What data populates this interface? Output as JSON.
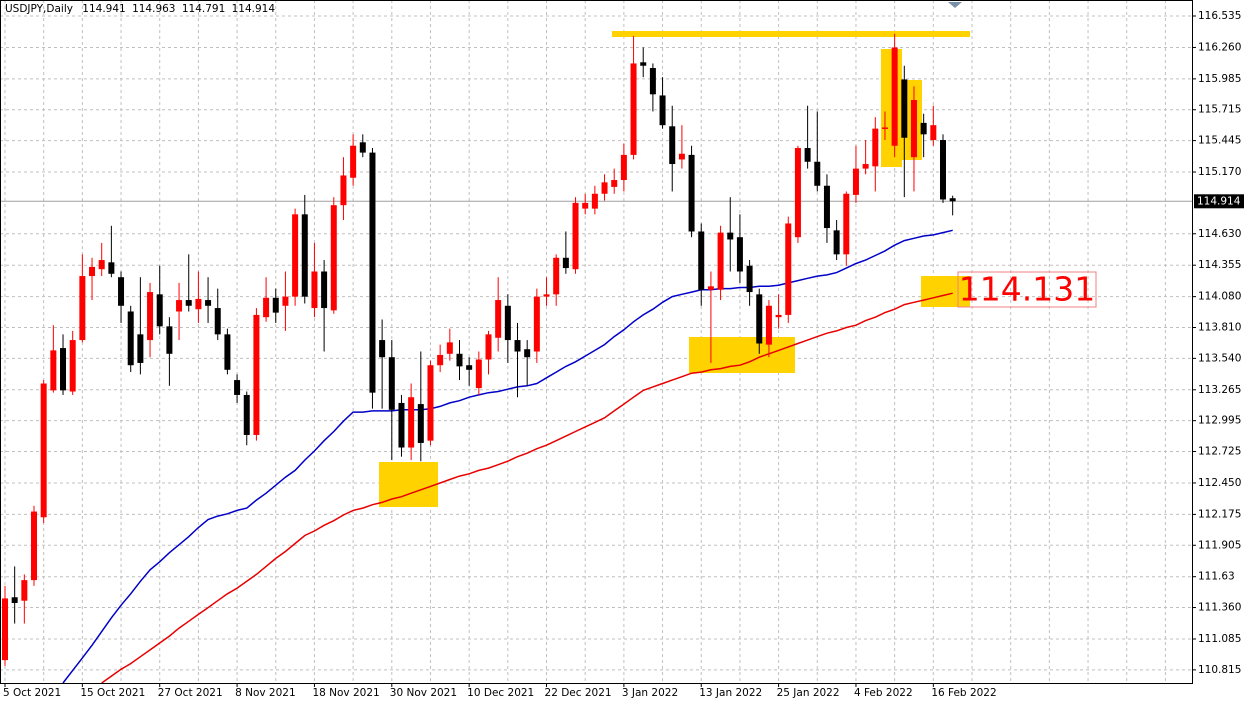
{
  "chart_data": {
    "type": "candlestick",
    "title": "USDJPY,Daily",
    "annotation": "114.131",
    "up_color": "#ff0000",
    "down_color": "#000000",
    "grid": true,
    "categories": [
      "5 Oct 2021",
      null,
      null,
      null,
      null,
      null,
      null,
      null,
      "15 Oct 2021",
      null,
      null,
      null,
      null,
      null,
      null,
      null,
      "27 Oct 2021",
      null,
      null,
      null,
      null,
      null,
      null,
      null,
      "8 Nov 2021",
      null,
      null,
      null,
      null,
      null,
      null,
      null,
      "18 Nov 2021",
      null,
      null,
      null,
      null,
      null,
      null,
      null,
      "30 Nov 2021",
      null,
      null,
      null,
      null,
      null,
      null,
      null,
      "10 Dec 2021",
      null,
      null,
      null,
      null,
      null,
      null,
      null,
      "22 Dec 2021",
      null,
      null,
      null,
      null,
      null,
      null,
      null,
      "3 Jan 2022",
      null,
      null,
      null,
      null,
      null,
      null,
      null,
      "13 Jan 2022",
      null,
      null,
      null,
      null,
      null,
      null,
      null,
      "25 Jan 2022",
      null,
      null,
      null,
      null,
      null,
      null,
      null,
      "4 Feb 2022",
      null,
      null,
      null,
      null,
      null,
      null,
      null,
      "16 Feb 2022",
      null,
      null
    ],
    "open": [
      110.9,
      111.45,
      111.42,
      111.6,
      112.15,
      113.26,
      113.63,
      113.25,
      113.7,
      114.26,
      114.32,
      114.38,
      114.25,
      113.95,
      113.75,
      113.7,
      114.1,
      113.82,
      113.95,
      114.05,
      113.97,
      114.05,
      113.98,
      113.75,
      113.35,
      113.22,
      112.87,
      113.9,
      114.07,
      114.0,
      114.08,
      114.8,
      113.98,
      114.3,
      113.96,
      114.88,
      115.12,
      115.43,
      115.34,
      113.7,
      113.55,
      113.15,
      112.76,
      113.14,
      112.82,
      113.48,
      113.58,
      113.58,
      113.48,
      113.28,
      113.53,
      113.72,
      114.0,
      113.7,
      113.62,
      113.6,
      114.08,
      114.1,
      114.42,
      114.32,
      114.85,
      114.85,
      114.98,
      115.04,
      115.1,
      115.32,
      116.13,
      116.08,
      115.84,
      115.57,
      115.28,
      115.32,
      114.65,
      114.14,
      114.14,
      114.64,
      114.6,
      114.35,
      114.1,
      113.66,
      113.9,
      113.92,
      114.6,
      115.38,
      115.26,
      115.05,
      114.66,
      114.45,
      114.97,
      115.2,
      115.22,
      115.55,
      115.4,
      115.98,
      115.3,
      115.6,
      115.45,
      115.45,
      114.941
    ],
    "high": [
      111.55,
      111.72,
      111.65,
      112.25,
      113.35,
      113.83,
      113.75,
      113.78,
      114.45,
      114.42,
      114.55,
      114.7,
      114.3,
      114.0,
      114.25,
      114.2,
      114.35,
      113.9,
      114.2,
      114.45,
      114.3,
      114.25,
      114.15,
      113.8,
      113.4,
      113.25,
      113.98,
      114.25,
      114.15,
      114.3,
      114.85,
      114.97,
      114.55,
      114.4,
      114.95,
      115.3,
      115.5,
      115.5,
      115.38,
      113.88,
      113.7,
      113.22,
      113.32,
      113.6,
      113.52,
      113.66,
      113.8,
      113.7,
      113.55,
      113.6,
      113.78,
      114.25,
      114.1,
      113.85,
      113.7,
      114.15,
      114.25,
      114.45,
      114.65,
      114.95,
      114.98,
      115.05,
      115.15,
      115.2,
      115.42,
      116.36,
      116.26,
      116.12,
      116.0,
      115.75,
      115.58,
      115.4,
      114.72,
      114.3,
      114.7,
      114.95,
      114.8,
      114.4,
      114.15,
      114.05,
      114.1,
      114.78,
      115.4,
      115.75,
      115.7,
      115.15,
      114.75,
      115.0,
      115.4,
      115.45,
      115.65,
      115.7,
      116.38,
      116.1,
      115.92,
      115.68,
      115.75,
      115.5,
      114.963
    ],
    "low": [
      110.85,
      111.22,
      111.22,
      111.55,
      112.1,
      113.24,
      113.22,
      113.22,
      113.68,
      114.05,
      114.26,
      114.25,
      113.85,
      113.42,
      113.4,
      113.55,
      113.75,
      113.3,
      113.7,
      113.95,
      113.85,
      113.85,
      113.7,
      113.4,
      113.15,
      112.78,
      112.82,
      113.86,
      113.85,
      113.78,
      114.0,
      114.02,
      113.9,
      113.6,
      113.93,
      114.75,
      115.05,
      115.3,
      113.1,
      113.1,
      112.65,
      112.68,
      112.65,
      112.64,
      112.78,
      113.42,
      113.52,
      113.35,
      113.3,
      113.22,
      113.4,
      113.6,
      113.5,
      113.2,
      113.3,
      113.5,
      114.0,
      114.0,
      114.28,
      114.28,
      114.8,
      114.8,
      114.92,
      114.98,
      115.0,
      115.28,
      116.0,
      115.7,
      115.55,
      115.0,
      115.2,
      114.6,
      114.0,
      113.5,
      114.05,
      114.3,
      114.2,
      114.0,
      113.58,
      113.55,
      113.8,
      113.85,
      114.55,
      115.2,
      115.0,
      114.55,
      114.4,
      114.35,
      114.9,
      115.15,
      115.0,
      115.45,
      115.3,
      114.95,
      115.0,
      115.3,
      115.4,
      114.9,
      114.791
    ],
    "close": [
      111.44,
      111.4,
      111.6,
      112.2,
      113.32,
      113.61,
      113.26,
      113.7,
      114.26,
      114.34,
      114.4,
      114.28,
      114.0,
      113.48,
      113.5,
      114.12,
      113.82,
      113.58,
      114.05,
      114.0,
      114.06,
      114.0,
      113.75,
      113.44,
      113.22,
      112.87,
      113.92,
      114.07,
      113.94,
      114.08,
      114.8,
      114.08,
      114.3,
      113.98,
      114.88,
      115.14,
      115.4,
      115.34,
      113.24,
      113.55,
      113.09,
      112.76,
      113.2,
      112.8,
      113.48,
      113.57,
      113.68,
      113.47,
      113.44,
      113.53,
      113.75,
      114.05,
      113.7,
      113.6,
      113.55,
      114.08,
      114.1,
      114.42,
      114.33,
      114.9,
      114.9,
      114.98,
      115.08,
      115.1,
      115.32,
      116.12,
      116.1,
      115.85,
      115.58,
      115.24,
      115.33,
      114.65,
      114.14,
      114.17,
      114.64,
      114.58,
      114.3,
      114.12,
      113.67,
      114.0,
      113.92,
      114.72,
      115.38,
      115.26,
      115.05,
      114.68,
      114.45,
      114.98,
      115.2,
      115.24,
      115.55,
      115.56,
      116.26,
      115.47,
      115.8,
      115.5,
      115.58,
      114.93,
      114.914
    ],
    "series": [
      {
        "color": "#0000c8",
        "values": [
          null,
          null,
          null,
          null,
          null,
          null,
          110.7,
          110.81,
          110.92,
          111.03,
          111.15,
          111.27,
          111.38,
          111.48,
          111.59,
          111.69,
          111.76,
          111.84,
          111.91,
          111.98,
          112.06,
          112.13,
          112.16,
          112.18,
          112.21,
          112.23,
          112.3,
          112.36,
          112.43,
          112.5,
          112.56,
          112.65,
          112.73,
          112.82,
          112.9,
          112.99,
          113.07,
          113.07,
          113.08,
          113.08,
          113.08,
          113.09,
          113.09,
          113.09,
          113.1,
          113.12,
          113.15,
          113.17,
          113.2,
          113.22,
          113.24,
          113.25,
          113.27,
          113.29,
          113.3,
          113.32,
          113.37,
          113.42,
          113.47,
          113.51,
          113.56,
          113.61,
          113.66,
          113.73,
          113.79,
          113.86,
          113.92,
          113.97,
          114.03,
          114.08,
          114.1,
          114.12,
          114.14,
          114.14,
          114.15,
          114.15,
          114.16,
          114.16,
          114.17,
          114.17,
          114.18,
          114.2,
          114.22,
          114.24,
          114.26,
          114.27,
          114.29,
          114.33,
          114.37,
          114.4,
          114.44,
          114.48,
          114.53,
          114.57,
          114.59,
          114.61,
          114.62,
          114.64,
          114.66
        ]
      },
      {
        "color": "#e80000",
        "values": [
          null,
          null,
          null,
          null,
          null,
          null,
          null,
          null,
          null,
          null,
          110.7,
          110.76,
          110.82,
          110.87,
          110.93,
          110.99,
          111.05,
          111.11,
          111.18,
          111.24,
          111.3,
          111.36,
          111.42,
          111.48,
          111.53,
          111.59,
          111.65,
          111.72,
          111.79,
          111.85,
          111.92,
          111.99,
          112.03,
          112.08,
          112.12,
          112.17,
          112.21,
          112.23,
          112.26,
          112.28,
          112.31,
          112.33,
          112.36,
          112.39,
          112.42,
          112.45,
          112.48,
          112.51,
          112.53,
          112.56,
          112.58,
          112.61,
          112.64,
          112.68,
          112.71,
          112.75,
          112.78,
          112.82,
          112.86,
          112.9,
          112.94,
          112.98,
          113.02,
          113.08,
          113.14,
          113.2,
          113.26,
          113.29,
          113.32,
          113.35,
          113.38,
          113.41,
          113.42,
          113.44,
          113.45,
          113.47,
          113.48,
          113.51,
          113.55,
          113.58,
          113.61,
          113.64,
          113.67,
          113.7,
          113.73,
          113.76,
          113.78,
          113.81,
          113.83,
          113.87,
          113.9,
          113.94,
          113.97,
          114.01,
          114.03,
          114.05,
          114.07,
          114.09,
          114.11
        ]
      }
    ],
    "ylim": [
      110.7,
      116.675
    ],
    "yticks": [
      {
        "value": 110.815,
        "label": "110.815"
      },
      111.085,
      {
        "value": 111.36,
        "label": "111.360"
      },
      111.63,
      111.905,
      112.175,
      {
        "value": 112.45,
        "label": "112.450"
      },
      112.725,
      112.995,
      113.265,
      {
        "value": 113.54,
        "label": "113.540"
      },
      {
        "value": 113.81,
        "label": "113.810"
      },
      {
        "value": 114.08,
        "label": "114.080"
      },
      114.355,
      {
        "value": 114.63,
        "label": "114.630"
      },
      {
        "value": 115.17,
        "label": "115.170"
      },
      115.445,
      115.715,
      115.985,
      {
        "value": 116.26,
        "label": "116.260"
      },
      116.535
    ]
  }
}
